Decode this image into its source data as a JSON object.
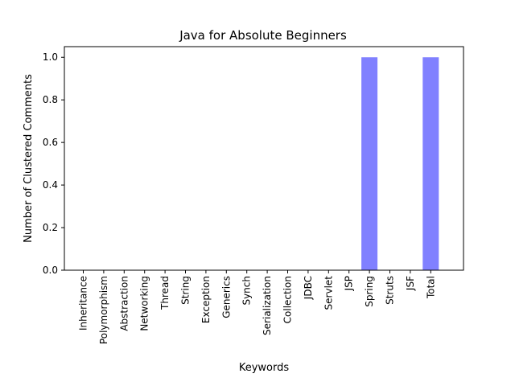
{
  "chart_data": {
    "type": "bar",
    "title": "Java for Absolute Beginners",
    "xlabel": "Keywords",
    "ylabel": "Number of Clustered Comments",
    "categories": [
      "Inheritance",
      "Polymorphism",
      "Abstraction",
      "Networking",
      "Thread",
      "String",
      "Exception",
      "Generics",
      "Synch",
      "Serialization",
      "Collection",
      "JDBC",
      "Servlet",
      "JSP",
      "Spring",
      "Struts",
      "JSF",
      "Total"
    ],
    "values": [
      0,
      0,
      0,
      0,
      0,
      0,
      0,
      0,
      0,
      0,
      0,
      0,
      0,
      0,
      1.0,
      0,
      0,
      1.0
    ],
    "ylim": [
      0,
      1.05
    ],
    "yticks": [
      "0.0",
      "0.2",
      "0.4",
      "0.6",
      "0.8",
      "1.0"
    ],
    "bar_color": "#8080ff",
    "grid": false
  }
}
